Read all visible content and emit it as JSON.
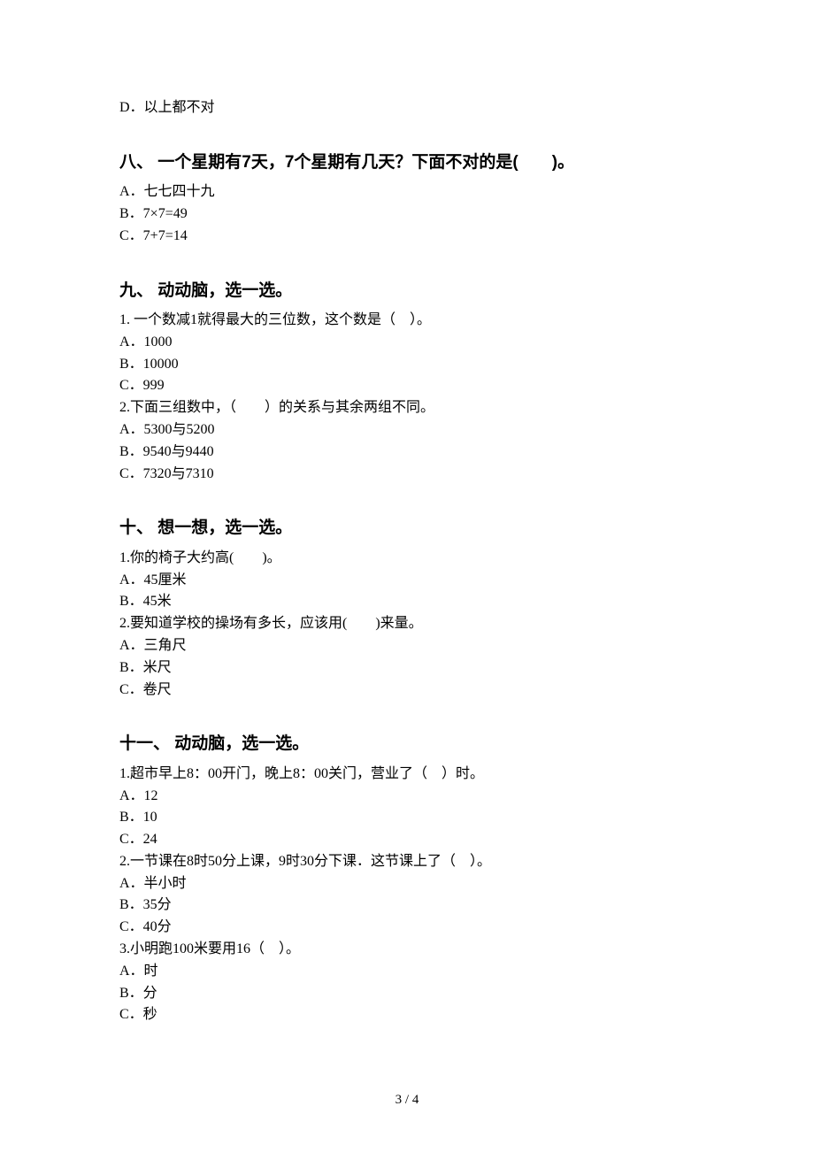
{
  "q7": {
    "optD": "D．以上都不对"
  },
  "q8": {
    "title": "八、 一个星期有7天，7个星期有几天？下面不对的是(　　)。",
    "optA": "A．七七四十九",
    "optB": "B．7×7=49",
    "optC": "C．7+7=14"
  },
  "q9": {
    "title": "九、 动动脑，选一选。",
    "sub1": {
      "stem": "1. 一个数减1就得最大的三位数，这个数是（　）。",
      "optA": "A．1000",
      "optB": "B．10000",
      "optC": "C．999"
    },
    "sub2": {
      "stem": "2.下面三组数中，（　　）的关系与其余两组不同。",
      "optA": "A．5300与5200",
      "optB": "B．9540与9440",
      "optC": "C．7320与7310"
    }
  },
  "q10": {
    "title": "十、 想一想，选一选。",
    "sub1": {
      "stem": "1.你的椅子大约高(　　)。",
      "optA": "A．45厘米",
      "optB": "B．45米"
    },
    "sub2": {
      "stem": "2.要知道学校的操场有多长，应该用(　　)来量。",
      "optA": "A．三角尺",
      "optB": "B．米尺",
      "optC": "C．卷尺"
    }
  },
  "q11": {
    "title": "十一、 动动脑，选一选。",
    "sub1": {
      "stem": "1.超市早上8：00开门，晚上8：00关门，营业了（　）时。",
      "optA": "A．12",
      "optB": "B．10",
      "optC": "C．24"
    },
    "sub2": {
      "stem": "2.一节课在8时50分上课，9时30分下课．这节课上了（　）。",
      "optA": "A．半小时",
      "optB": "B．35分",
      "optC": "C．40分"
    },
    "sub3": {
      "stem": "3.小明跑100米要用16（　）。",
      "optA": "A．时",
      "optB": "B．分",
      "optC": "C．秒"
    }
  },
  "page_number": "3 / 4"
}
